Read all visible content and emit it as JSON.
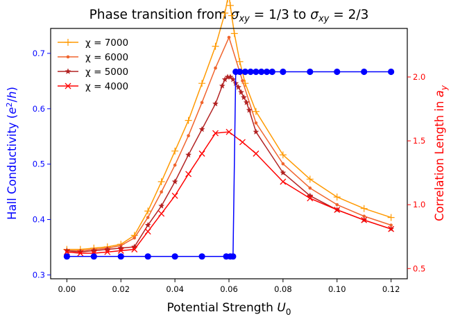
{
  "chart_data": {
    "type": "line",
    "title_parts": [
      "Phase transition from ",
      "σ",
      "xy",
      " = 1/3 to ",
      "σ",
      "xy",
      " = 2/3"
    ],
    "xlabel_parts": [
      "Potential Strength ",
      "U",
      "0"
    ],
    "ylabel_left_parts": [
      "Hall Conductivity (",
      "e",
      "2",
      "/",
      "h",
      ")"
    ],
    "ylabel_right_parts": [
      "Correlation Length in ",
      "a",
      "y"
    ],
    "xlim": [
      -0.006,
      0.126
    ],
    "ylim_left": [
      0.293,
      0.745
    ],
    "ylim_right": [
      0.42,
      2.38
    ],
    "x_ticks": [
      0.0,
      0.02,
      0.04,
      0.06,
      0.08,
      0.1,
      0.12
    ],
    "x_tick_labels": [
      "0.00",
      "0.02",
      "0.04",
      "0.06",
      "0.08",
      "0.10",
      "0.12"
    ],
    "y_left_ticks": [
      0.3,
      0.4,
      0.5,
      0.6,
      0.7
    ],
    "y_left_tick_labels": [
      "0.3",
      "0.4",
      "0.5",
      "0.6",
      "0.7"
    ],
    "y_right_ticks": [
      0.5,
      1.0,
      1.5,
      2.0
    ],
    "y_right_tick_labels": [
      "0.5",
      "1.0",
      "1.5",
      "2.0"
    ],
    "grid": false,
    "legend_position": "top-left",
    "hall": {
      "color": "#0000ff",
      "x": [
        0.0,
        0.01,
        0.02,
        0.03,
        0.04,
        0.05,
        0.059,
        0.0605,
        0.0615,
        0.0625,
        0.064,
        0.066,
        0.068,
        0.07,
        0.072,
        0.074,
        0.076,
        0.08,
        0.09,
        0.1,
        0.11,
        0.12
      ],
      "y": [
        0.3333,
        0.3333,
        0.3333,
        0.3333,
        0.3333,
        0.3333,
        0.3333,
        0.3333,
        0.3333,
        0.6667,
        0.6667,
        0.6667,
        0.6667,
        0.6667,
        0.6667,
        0.6667,
        0.6667,
        0.6667,
        0.6667,
        0.6667,
        0.6667,
        0.6667
      ]
    },
    "series": [
      {
        "name": "χ = 7000",
        "chi": "7000",
        "color": "#ff9900",
        "marker": "plus",
        "x": [
          0.0,
          0.005,
          0.01,
          0.015,
          0.02,
          0.025,
          0.03,
          0.035,
          0.04,
          0.045,
          0.05,
          0.055,
          0.0585,
          0.0595,
          0.06,
          0.0605,
          0.061,
          0.062,
          0.064,
          0.066,
          0.07,
          0.08,
          0.09,
          0.1,
          0.11,
          0.12
        ],
        "y": [
          0.65,
          0.65,
          0.66,
          0.67,
          0.69,
          0.76,
          0.95,
          1.18,
          1.42,
          1.66,
          1.95,
          2.24,
          2.5,
          2.61,
          2.63,
          2.56,
          2.48,
          2.34,
          2.12,
          1.95,
          1.73,
          1.39,
          1.2,
          1.06,
          0.97,
          0.9
        ]
      },
      {
        "name": "χ = 6000",
        "chi": "6000",
        "color": "#f0642d",
        "marker": "dot",
        "x": [
          0.0,
          0.005,
          0.01,
          0.015,
          0.02,
          0.025,
          0.03,
          0.035,
          0.04,
          0.045,
          0.05,
          0.055,
          0.06,
          0.065,
          0.07,
          0.08,
          0.09,
          0.1,
          0.11,
          0.12
        ],
        "y": [
          0.64,
          0.64,
          0.65,
          0.66,
          0.68,
          0.74,
          0.9,
          1.1,
          1.31,
          1.54,
          1.8,
          2.07,
          2.31,
          1.97,
          1.64,
          1.32,
          1.13,
          1.0,
          0.91,
          0.84
        ]
      },
      {
        "name": "χ = 5000",
        "chi": "5000",
        "color": "#b22222",
        "marker": "star",
        "x": [
          0.0,
          0.005,
          0.01,
          0.015,
          0.02,
          0.025,
          0.03,
          0.035,
          0.04,
          0.045,
          0.05,
          0.055,
          0.0575,
          0.0585,
          0.0595,
          0.0605,
          0.0615,
          0.0625,
          0.0635,
          0.0645,
          0.0655,
          0.0665,
          0.0675,
          0.07,
          0.08,
          0.09,
          0.1,
          0.11,
          0.12
        ],
        "y": [
          0.64,
          0.63,
          0.64,
          0.65,
          0.66,
          0.67,
          0.84,
          0.99,
          1.18,
          1.39,
          1.59,
          1.79,
          1.93,
          1.98,
          2.0,
          2.0,
          1.98,
          1.95,
          1.92,
          1.88,
          1.84,
          1.8,
          1.74,
          1.57,
          1.25,
          1.07,
          0.96,
          0.88,
          0.81
        ]
      },
      {
        "name": "χ = 4000",
        "chi": "4000",
        "color": "#ff0000",
        "marker": "x",
        "x": [
          0.0,
          0.005,
          0.01,
          0.015,
          0.02,
          0.025,
          0.03,
          0.035,
          0.04,
          0.045,
          0.05,
          0.055,
          0.06,
          0.065,
          0.07,
          0.08,
          0.09,
          0.1,
          0.11,
          0.12
        ],
        "y": [
          0.63,
          0.62,
          0.62,
          0.63,
          0.64,
          0.65,
          0.79,
          0.93,
          1.07,
          1.24,
          1.4,
          1.56,
          1.57,
          1.49,
          1.4,
          1.18,
          1.05,
          0.96,
          0.88,
          0.81
        ]
      }
    ]
  }
}
